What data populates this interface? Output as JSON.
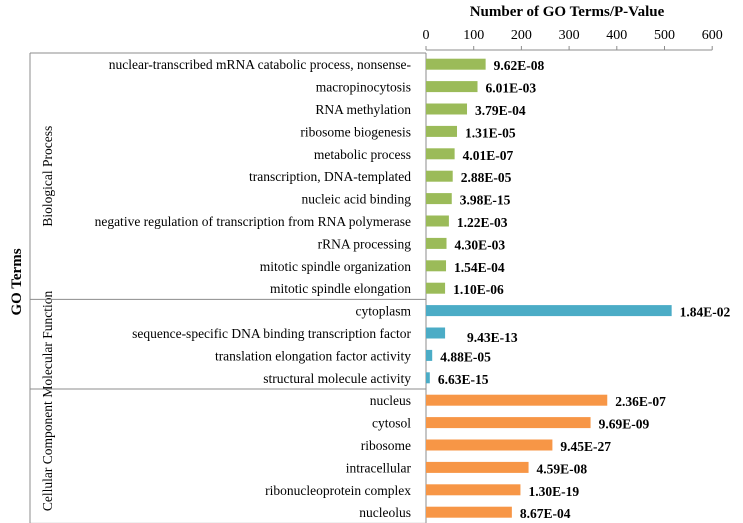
{
  "chart_data": {
    "type": "bar",
    "orientation": "horizontal",
    "title": "Number of GO Terms/P-Value",
    "ylabel": "GO Terms",
    "xlim": [
      0,
      600
    ],
    "xticks": [
      0,
      100,
      200,
      300,
      400,
      500,
      600
    ],
    "colors": {
      "Biological Process": "#9bbb59",
      "Molecular Function": "#4bacc6",
      "Cellular Component": "#f79646"
    },
    "groups": [
      {
        "name": "Biological Process",
        "items": [
          {
            "term": "nuclear-transcribed mRNA catabolic process, nonsense-",
            "value": 125,
            "pvalue": "9.62E-08"
          },
          {
            "term": "macropinocytosis",
            "value": 108,
            "pvalue": "6.01E-03"
          },
          {
            "term": "RNA methylation",
            "value": 86,
            "pvalue": "3.79E-04"
          },
          {
            "term": "ribosome biogenesis",
            "value": 65,
            "pvalue": "1.31E-05"
          },
          {
            "term": "metabolic process",
            "value": 60,
            "pvalue": "4.01E-07"
          },
          {
            "term": "transcription, DNA-templated",
            "value": 56,
            "pvalue": "2.88E-05"
          },
          {
            "term": "nucleic acid binding",
            "value": 54,
            "pvalue": "3.98E-15"
          },
          {
            "term": "negative regulation of transcription from RNA polymerase",
            "value": 48,
            "pvalue": "1.22E-03"
          },
          {
            "term": "rRNA processing",
            "value": 43,
            "pvalue": "4.30E-03"
          },
          {
            "term": "mitotic spindle organization",
            "value": 42,
            "pvalue": "1.54E-04"
          },
          {
            "term": "mitotic spindle elongation",
            "value": 40,
            "pvalue": "1.10E-06"
          }
        ]
      },
      {
        "name": "Molecular Function",
        "items": [
          {
            "term": "cytoplasm",
            "value": 515,
            "pvalue": "1.84E-02"
          },
          {
            "term": "sequence-specific DNA binding transcription factor",
            "value": 40,
            "pvalue": "9.43E-13"
          },
          {
            "term": "translation elongation factor activity",
            "value": 13,
            "pvalue": "4.88E-05"
          },
          {
            "term": "structural molecule activity",
            "value": 8,
            "pvalue": "6.63E-15"
          }
        ]
      },
      {
        "name": "Cellular Component",
        "items": [
          {
            "term": "nucleus",
            "value": 380,
            "pvalue": "2.36E-07"
          },
          {
            "term": "cytosol",
            "value": 345,
            "pvalue": "9.69E-09"
          },
          {
            "term": "ribosome",
            "value": 265,
            "pvalue": "9.45E-27"
          },
          {
            "term": "intracellular",
            "value": 215,
            "pvalue": "4.59E-08"
          },
          {
            "term": "ribonucleoprotein complex",
            "value": 198,
            "pvalue": "1.30E-19"
          },
          {
            "term": "nucleolus",
            "value": 180,
            "pvalue": "8.67E-04"
          }
        ]
      }
    ]
  }
}
